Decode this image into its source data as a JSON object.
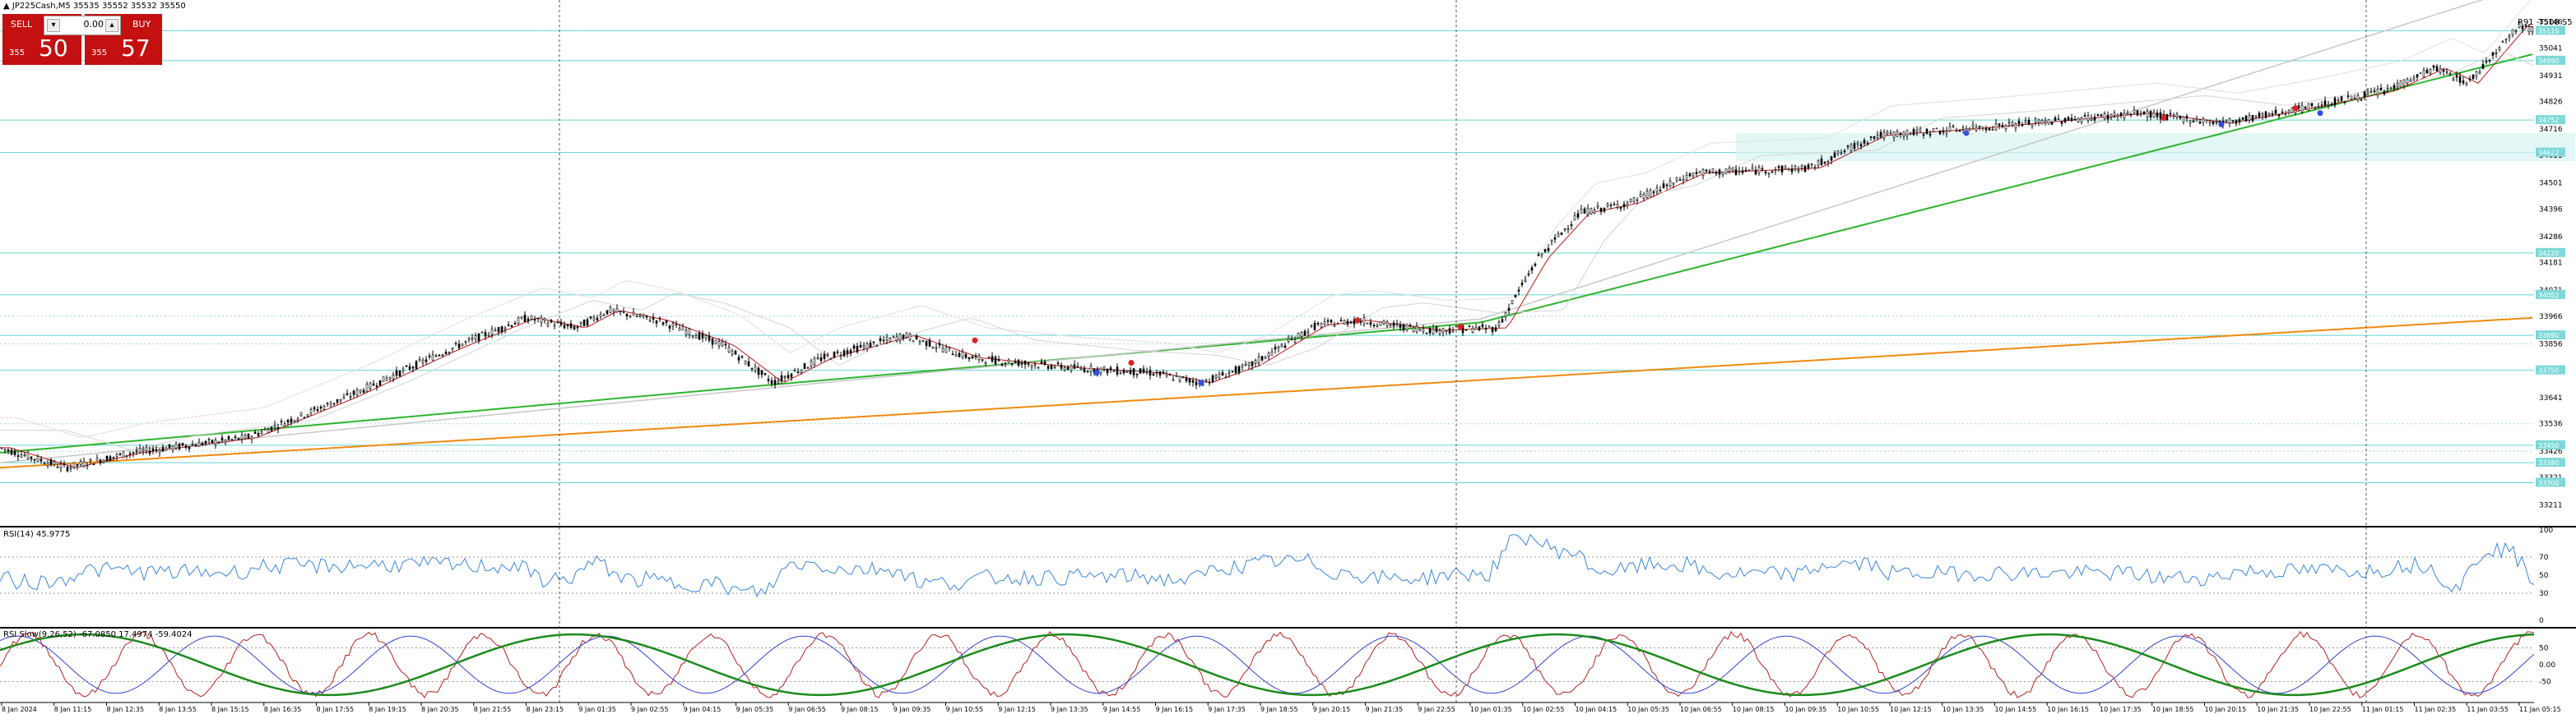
{
  "window": {
    "symbol_info": "JP225Cash,M5  35535 35552 35532 35550"
  },
  "trade_panel": {
    "sell_label": "SELL",
    "buy_label": "BUY",
    "lot_value": "0.00",
    "sell_price_small": "355",
    "sell_price_big": "50",
    "buy_price_small": "355",
    "buy_price_big": "57"
  },
  "top_right_label": "R91 -T508 S5",
  "price_axis": {
    "ticks": [
      "35146",
      "35041",
      "34931",
      "34826",
      "34716",
      "34611",
      "34501",
      "34396",
      "34286",
      "34181",
      "34071",
      "33966",
      "33856",
      "33751",
      "33641",
      "33536",
      "33426",
      "33321",
      "33211"
    ],
    "highlight_labels": [
      "35110",
      "34990",
      "34752",
      "34622",
      "34220",
      "34052",
      "33890",
      "33750",
      "33450",
      "33380",
      "33300"
    ]
  },
  "rsi": {
    "label": "RSI(14) 45.9775",
    "ticks": [
      "100",
      "70",
      "50",
      "30",
      "0"
    ]
  },
  "stoch": {
    "label": "RSI Slow(9,26,52) -67.0850 17.4974 -59.4024",
    "ticks": [
      "50",
      "0.00",
      "-50"
    ]
  },
  "time_axis": {
    "labels": [
      "8 Jan 2024",
      "8 Jan 11:15",
      "8 Jan 12:35",
      "8 Jan 13:55",
      "8 Jan 15:15",
      "8 Jan 16:35",
      "8 Jan 17:55",
      "8 Jan 19:15",
      "8 Jan 20:35",
      "8 Jan 21:55",
      "8 Jan 23:15",
      "9 Jan 01:35",
      "9 Jan 02:55",
      "9 Jan 04:15",
      "9 Jan 05:35",
      "9 Jan 06:55",
      "9 Jan 08:15",
      "9 Jan 09:35",
      "9 Jan 10:55",
      "9 Jan 12:15",
      "9 Jan 13:35",
      "9 Jan 14:55",
      "9 Jan 16:15",
      "9 Jan 17:35",
      "9 Jan 18:55",
      "9 Jan 20:15",
      "9 Jan 21:35",
      "9 Jan 22:55",
      "10 Jan 01:35",
      "10 Jan 02:55",
      "10 Jan 04:15",
      "10 Jan 05:35",
      "10 Jan 06:55",
      "10 Jan 08:15",
      "10 Jan 09:35",
      "10 Jan 10:55",
      "10 Jan 12:15",
      "10 Jan 13:35",
      "10 Jan 14:55",
      "10 Jan 16:15",
      "10 Jan 17:35",
      "10 Jan 18:55",
      "10 Jan 20:15",
      "10 Jan 21:35",
      "10 Jan 22:55",
      "11 Jan 01:15",
      "11 Jan 02:35",
      "11 Jan 03:55",
      "11 Jan 05:15"
    ]
  },
  "colors": {
    "candle": "#000000",
    "ema_fast": "#c01818",
    "ema_mid": "#1d3fd0",
    "ma_green": "#2fb52f",
    "ma_orange": "#f08a10",
    "ma_gray": "#c8c8c8",
    "level_cyan": "#66d4d4",
    "rsi_line": "#3a86e0",
    "stoch_red": "#b82020",
    "stoch_blue": "#3040d8",
    "stoch_green": "#1c8a1c",
    "sell_bg": "#c41010",
    "level_label_bg": "#7fd8d8"
  }
}
